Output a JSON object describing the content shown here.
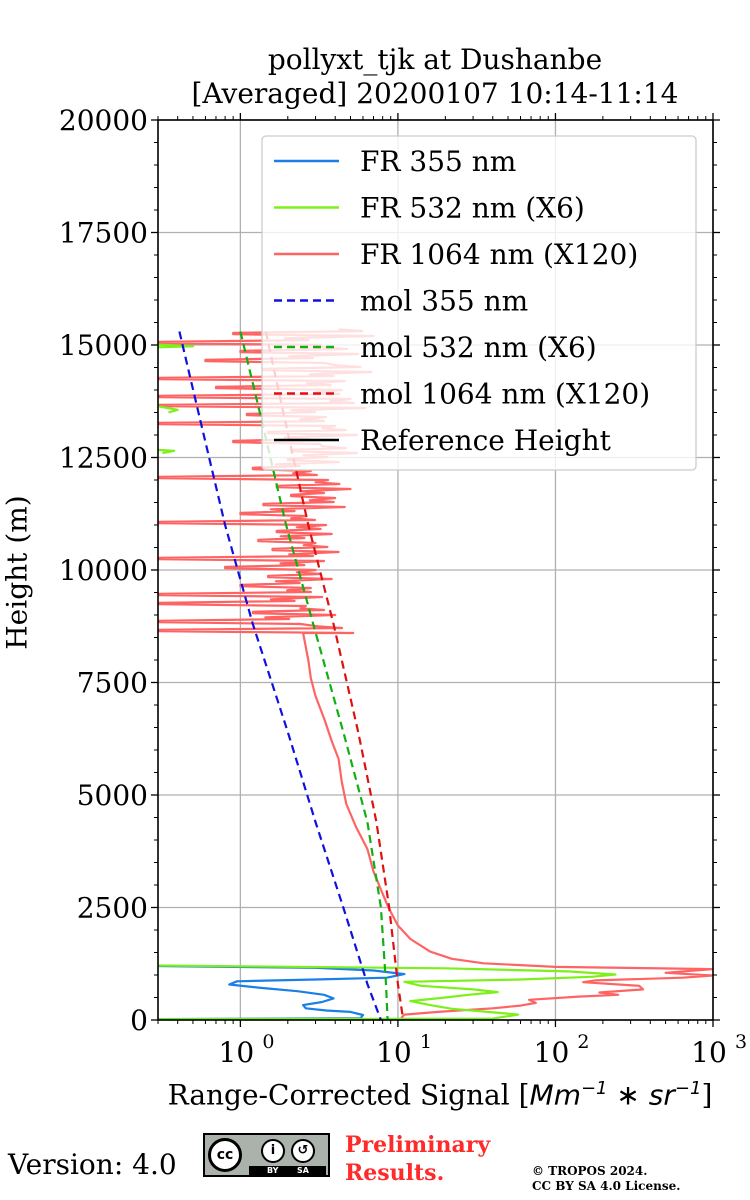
{
  "title": {
    "line1": "pollyxt_tjk at Dushanbe",
    "line2": "[Averaged] 20200107 10:14-11:14"
  },
  "chart_data": {
    "type": "line",
    "xscale": "log",
    "xlim": [
      0.3,
      1000
    ],
    "ylim": [
      0,
      20000
    ],
    "ylabel": "Height (m)",
    "xlabel": {
      "prefix": "Range-Corrected Signal [",
      "unit": "Mm",
      "exp1": "−1",
      "mid": " ∗ sr",
      "exp2": "−1",
      "suffix": "]"
    },
    "yticks": [
      "0",
      "2500",
      "5000",
      "7500",
      "10000",
      "12500",
      "15000",
      "17500",
      "20000"
    ],
    "ytick_values": [
      0,
      2500,
      5000,
      7500,
      10000,
      12500,
      15000,
      17500,
      20000
    ],
    "xticks": [
      {
        "value": 1,
        "base": "10",
        "exp": "0"
      },
      {
        "value": 10,
        "base": "10",
        "exp": "1"
      },
      {
        "value": 100,
        "base": "10",
        "exp": "2"
      },
      {
        "value": 1000,
        "base": "10",
        "exp": "3"
      }
    ],
    "grid": true,
    "legend_position": "top-right",
    "series": [
      {
        "name": "FR 355 nm",
        "color": "#1a7fe6",
        "style": "solid",
        "points": [
          [
            0.3,
            20
          ],
          [
            5.8,
            40
          ],
          [
            6.0,
            110
          ],
          [
            5.0,
            180
          ],
          [
            3.5,
            210
          ],
          [
            2.6,
            260
          ],
          [
            2.5,
            330
          ],
          [
            3.3,
            400
          ],
          [
            3.9,
            480
          ],
          [
            3.4,
            560
          ],
          [
            2.3,
            640
          ],
          [
            1.3,
            720
          ],
          [
            0.85,
            790
          ],
          [
            0.95,
            860
          ],
          [
            3.0,
            900
          ],
          [
            8.5,
            940
          ],
          [
            11.0,
            1020
          ],
          [
            7.0,
            1100
          ],
          [
            3.0,
            1160
          ],
          [
            0.3,
            1200
          ]
        ]
      },
      {
        "name": "FR 532 nm (X6)",
        "color": "#7df019",
        "style": "solid",
        "points": [
          [
            0.3,
            18
          ],
          [
            40,
            30
          ],
          [
            58,
            120
          ],
          [
            35,
            190
          ],
          [
            22,
            250
          ],
          [
            16,
            330
          ],
          [
            12,
            420
          ],
          [
            20,
            500
          ],
          [
            28,
            560
          ],
          [
            43,
            620
          ],
          [
            30,
            680
          ],
          [
            14,
            760
          ],
          [
            11,
            850
          ],
          [
            60,
            900
          ],
          [
            170,
            960
          ],
          [
            240,
            1010
          ],
          [
            120,
            1080
          ],
          [
            20,
            1150
          ],
          [
            0.3,
            1210
          ],
          [
            0.3,
            1200
          ],
          [
            null,
            null
          ],
          [
            0.3,
            13640
          ],
          [
            0.4,
            13560
          ],
          [
            0.35,
            13500
          ],
          [
            null,
            null
          ],
          [
            0.3,
            12670
          ],
          [
            0.38,
            12650
          ],
          [
            0.32,
            12600
          ],
          [
            null,
            null
          ],
          [
            0.3,
            14950
          ],
          [
            0.5,
            14970
          ],
          [
            0.3,
            15010
          ]
        ]
      },
      {
        "name": "FR 1064 nm (X120)",
        "color": "#ff6464",
        "style": "solid",
        "points": [
          [
            0.3,
            15
          ]
        ]
      },
      {
        "name": "mol 355 nm",
        "color": "#1010e0",
        "style": "dashed",
        "points": [
          [
            0.41,
            15300
          ],
          [
            0.55,
            13400
          ],
          [
            0.8,
            11000
          ],
          [
            1.2,
            8800
          ],
          [
            2.0,
            6400
          ],
          [
            3.0,
            4400
          ],
          [
            4.5,
            2500
          ],
          [
            6.4,
            800
          ],
          [
            7.8,
            0
          ]
        ]
      },
      {
        "name": "mol 532 nm (X6)",
        "color": "#10b010",
        "style": "dashed",
        "points": [
          [
            1.0,
            15300
          ],
          [
            1.35,
            13400
          ],
          [
            1.95,
            11000
          ],
          [
            2.9,
            8800
          ],
          [
            4.5,
            6400
          ],
          [
            6.4,
            4400
          ],
          [
            7.8,
            2500
          ],
          [
            8.4,
            800
          ],
          [
            8.6,
            0
          ]
        ]
      },
      {
        "name": "mol 1064 nm (X120)",
        "color": "#e01010",
        "style": "dashed",
        "points": [
          [
            1.45,
            15300
          ],
          [
            1.9,
            13400
          ],
          [
            2.7,
            11000
          ],
          [
            3.9,
            8800
          ],
          [
            5.6,
            6400
          ],
          [
            7.3,
            4400
          ],
          [
            8.8,
            2500
          ],
          [
            10.0,
            800
          ],
          [
            10.8,
            0
          ]
        ]
      },
      {
        "name": "Reference Height",
        "color": "#000000",
        "style": "solid",
        "points": []
      }
    ],
    "fr1064_low": [
      [
        10.5,
        20
      ],
      [
        10.6,
        60
      ],
      [
        11.0,
        120
      ],
      [
        18,
        180
      ],
      [
        40,
        260
      ],
      [
        60,
        320
      ],
      [
        75,
        380
      ],
      [
        68,
        450
      ],
      [
        140,
        520
      ],
      [
        250,
        560
      ],
      [
        190,
        610
      ],
      [
        360,
        680
      ],
      [
        340,
        760
      ],
      [
        150,
        840
      ],
      [
        180,
        880
      ],
      [
        640,
        940
      ],
      [
        1000,
        990
      ],
      [
        500,
        1050
      ],
      [
        1000,
        1130
      ],
      [
        100,
        1180
      ],
      [
        35,
        1260
      ],
      [
        22,
        1360
      ],
      [
        16,
        1520
      ],
      [
        12,
        1800
      ],
      [
        10,
        2100
      ],
      [
        8.7,
        2500
      ],
      [
        7.8,
        2900
      ],
      [
        7.0,
        3300
      ],
      [
        6.4,
        3800
      ],
      [
        5.4,
        4300
      ],
      [
        4.7,
        4800
      ],
      [
        4.4,
        5300
      ],
      [
        4.2,
        5800
      ],
      [
        3.8,
        6200
      ],
      [
        3.4,
        6700
      ],
      [
        3.0,
        7200
      ],
      [
        2.8,
        7600
      ],
      [
        2.7,
        8000
      ],
      [
        2.5,
        8600
      ]
    ],
    "fr1064_upper": [
      [
        8600,
        [
          0.3,
          5.2
        ]
      ],
      [
        8800,
        [
          0.3,
          2.4
        ]
      ],
      [
        9000,
        [
          1.2,
          4.0
        ]
      ],
      [
        9200,
        [
          0.3,
          2.6
        ]
      ],
      [
        9400,
        [
          0.3,
          3.3
        ]
      ],
      [
        9600,
        [
          1.0,
          2.8
        ]
      ],
      [
        9800,
        [
          1.5,
          3.8
        ]
      ],
      [
        10000,
        [
          0.8,
          3.0
        ]
      ],
      [
        10200,
        [
          0.3,
          3.4
        ]
      ],
      [
        10400,
        [
          1.6,
          4.2
        ]
      ],
      [
        10600,
        [
          1.3,
          3.0
        ]
      ],
      [
        10800,
        [
          1.7,
          3.8
        ]
      ],
      [
        11000,
        [
          0.3,
          3.5
        ]
      ],
      [
        11200,
        [
          1.0,
          2.6
        ]
      ],
      [
        11400,
        [
          1.4,
          4.6
        ]
      ],
      [
        11600,
        [
          2.1,
          4.0
        ]
      ],
      [
        11800,
        [
          1.7,
          5.0
        ]
      ],
      [
        12000,
        [
          0.3,
          3.6
        ]
      ],
      [
        12200,
        [
          1.2,
          2.8
        ]
      ],
      [
        12400,
        [
          2.0,
          4.2
        ]
      ],
      [
        12600,
        [
          2.1,
          5.5
        ]
      ],
      [
        12800,
        [
          0.9,
          3.2
        ]
      ],
      [
        13000,
        [
          1.5,
          5.5
        ]
      ],
      [
        13200,
        [
          0.3,
          4.0
        ]
      ],
      [
        13400,
        [
          1.1,
          3.5
        ]
      ],
      [
        13600,
        [
          0.3,
          6.2
        ]
      ],
      [
        13800,
        [
          0.3,
          5.0
        ]
      ],
      [
        14000,
        [
          0.7,
          4.4
        ]
      ],
      [
        14200,
        [
          0.3,
          4.6
        ]
      ],
      [
        14400,
        [
          1.4,
          6.8
        ]
      ],
      [
        14600,
        [
          0.6,
          3.4
        ]
      ],
      [
        14800,
        [
          1.0,
          5.6
        ]
      ],
      [
        15000,
        [
          0.3,
          3.2
        ]
      ],
      [
        15200,
        [
          0.9,
          7.0
        ]
      ]
    ]
  },
  "footer": {
    "version": "Version: 4.0",
    "cc_badge": {
      "cc": "cc",
      "by": "BY",
      "sa": "SA",
      "by_icon": "i",
      "sa_icon": "↺"
    },
    "preliminary_line1": "Preliminary",
    "preliminary_line2": "Results.",
    "copyright_line1": "© TROPOS 2024.",
    "copyright_line2": "CC BY SA 4.0 License."
  }
}
